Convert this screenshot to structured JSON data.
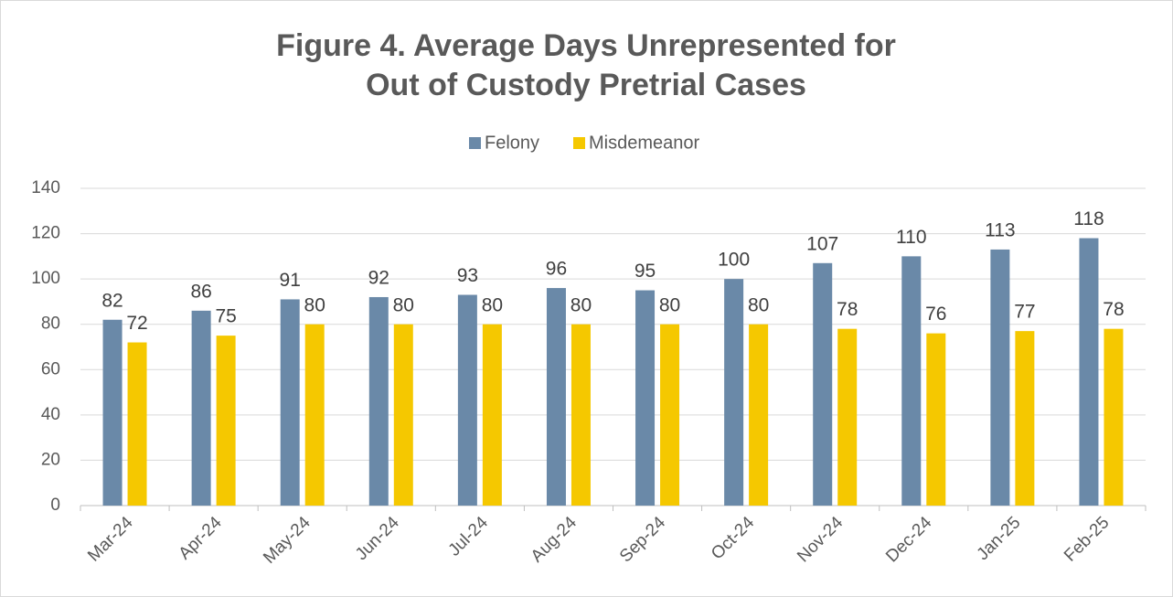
{
  "chart_data": {
    "type": "bar",
    "title": [
      "Figure 4. Average Days Unrepresented for",
      "Out of Custody Pretrial Cases"
    ],
    "categories": [
      "Mar-24",
      "Apr-24",
      "May-24",
      "Jun-24",
      "Jul-24",
      "Aug-24",
      "Sep-24",
      "Oct-24",
      "Nov-24",
      "Dec-24",
      "Jan-25",
      "Feb-25"
    ],
    "series": [
      {
        "name": "Felony",
        "color": "#6a89a8",
        "values": [
          82,
          86,
          91,
          92,
          93,
          96,
          95,
          100,
          107,
          110,
          113,
          118
        ]
      },
      {
        "name": "Misdemeanor",
        "color": "#f5c800",
        "values": [
          72,
          75,
          80,
          80,
          80,
          80,
          80,
          80,
          78,
          76,
          77,
          78
        ]
      }
    ],
    "ylim": [
      0,
      140
    ],
    "yticks": [
      0,
      20,
      40,
      60,
      80,
      100,
      120,
      140
    ],
    "grid": true,
    "legend": "top"
  }
}
